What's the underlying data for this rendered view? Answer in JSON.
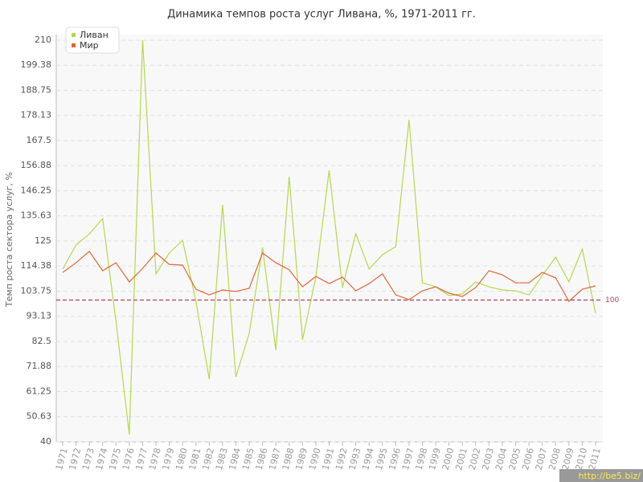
{
  "chart_data": {
    "type": "line",
    "title": "Динамика темпов роста услуг Ливана, %, 1971-2011 гг.",
    "y_label": "Темп роста сектора услуг, %",
    "categories": [
      "1971",
      "1972",
      "1973",
      "1974",
      "1975",
      "1976",
      "1977",
      "1978",
      "1979",
      "1980",
      "1981",
      "1982",
      "1983",
      "1984",
      "1985",
      "1986",
      "1987",
      "1988",
      "1989",
      "1990",
      "1991",
      "1992",
      "1993",
      "1994",
      "1995",
      "1996",
      "1997",
      "1998",
      "1999",
      "2000",
      "2001",
      "2002",
      "2003",
      "2004",
      "2005",
      "2006",
      "2007",
      "2008",
      "2009",
      "2010",
      "2011"
    ],
    "series": [
      {
        "name": "Ливан",
        "color": "#b5d84a",
        "values": [
          113.1,
          123.3,
          128,
          134.5,
          91,
          43.1,
          210,
          111.1,
          119.9,
          125.3,
          99.5,
          66.5,
          140.3,
          67.5,
          85.9,
          122.3,
          78.8,
          152.2,
          83.2,
          109.7,
          154.9,
          105.3,
          128.1,
          113.1,
          119.2,
          122.6,
          176.3,
          107.3,
          105.6,
          101.9,
          102.6,
          107.7,
          105.6,
          104.3,
          103.9,
          102.2,
          110.4,
          118.2,
          107.7,
          121.6,
          94.4
        ]
      },
      {
        "name": "Мир",
        "color": "#e0663a",
        "values": [
          111.7,
          115.8,
          120.6,
          112.4,
          115.8,
          107.7,
          113.4,
          119.9,
          115.1,
          114.8,
          104.6,
          102.2,
          104.3,
          103.6,
          105,
          119.9,
          115.8,
          112.8,
          105.6,
          110,
          107,
          109.7,
          103.9,
          107,
          111.1,
          102.2,
          100.2,
          103.9,
          105.6,
          102.9,
          101.5,
          105.3,
          112.4,
          110.7,
          107.3,
          107.3,
          111.7,
          109.4,
          99.5,
          104.6,
          106
        ]
      }
    ],
    "ylim": [
      40,
      210
    ],
    "yticks": [
      40,
      50.63,
      61.25,
      71.88,
      82.5,
      93.13,
      103.75,
      114.38,
      125,
      135.63,
      146.25,
      156.88,
      167.5,
      178.13,
      188.75,
      199.38,
      210
    ],
    "grid": true,
    "reference_line": {
      "value": 100,
      "color": "#b0405a"
    },
    "legend": "top-left",
    "watermark": "http://be5.biz/"
  }
}
